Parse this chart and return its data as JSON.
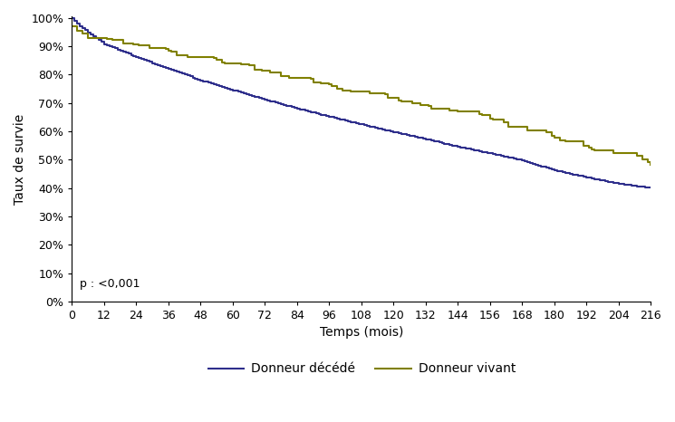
{
  "title": "",
  "xlabel": "Temps (mois)",
  "ylabel": "Taux de survie",
  "xlim": [
    0,
    216
  ],
  "ylim": [
    0,
    1.005
  ],
  "xticks": [
    0,
    12,
    24,
    36,
    48,
    60,
    72,
    84,
    96,
    108,
    120,
    132,
    144,
    156,
    168,
    180,
    192,
    204,
    216
  ],
  "yticks": [
    0.0,
    0.1,
    0.2,
    0.3,
    0.4,
    0.5,
    0.6,
    0.7,
    0.8,
    0.9,
    1.0
  ],
  "pvalue_text": "p : <0,001",
  "legend_entries": [
    "Donneur décédé",
    "Donneur vivant"
  ],
  "color_deceased": "#2e2e8b",
  "color_living": "#808000",
  "line_width": 1.5,
  "background_color": "#ffffff",
  "font_size_labels": 10,
  "font_size_ticks": 9,
  "font_size_legend": 10,
  "font_size_annotation": 9,
  "deceased_key_x": [
    0,
    3,
    12,
    24,
    36,
    48,
    60,
    72,
    84,
    96,
    108,
    120,
    132,
    144,
    156,
    168,
    180,
    192,
    204,
    216
  ],
  "deceased_key_y": [
    1.0,
    0.97,
    0.908,
    0.862,
    0.82,
    0.78,
    0.745,
    0.712,
    0.68,
    0.652,
    0.624,
    0.598,
    0.572,
    0.546,
    0.522,
    0.498,
    0.462,
    0.438,
    0.415,
    0.4
  ],
  "living_key_x": [
    0,
    2,
    12,
    24,
    36,
    48,
    60,
    72,
    84,
    96,
    108,
    120,
    132,
    144,
    156,
    168,
    180,
    192,
    204,
    216
  ],
  "living_key_y": [
    0.97,
    0.955,
    0.928,
    0.908,
    0.885,
    0.862,
    0.838,
    0.814,
    0.79,
    0.766,
    0.742,
    0.718,
    0.694,
    0.67,
    0.646,
    0.616,
    0.578,
    0.548,
    0.522,
    0.48
  ]
}
